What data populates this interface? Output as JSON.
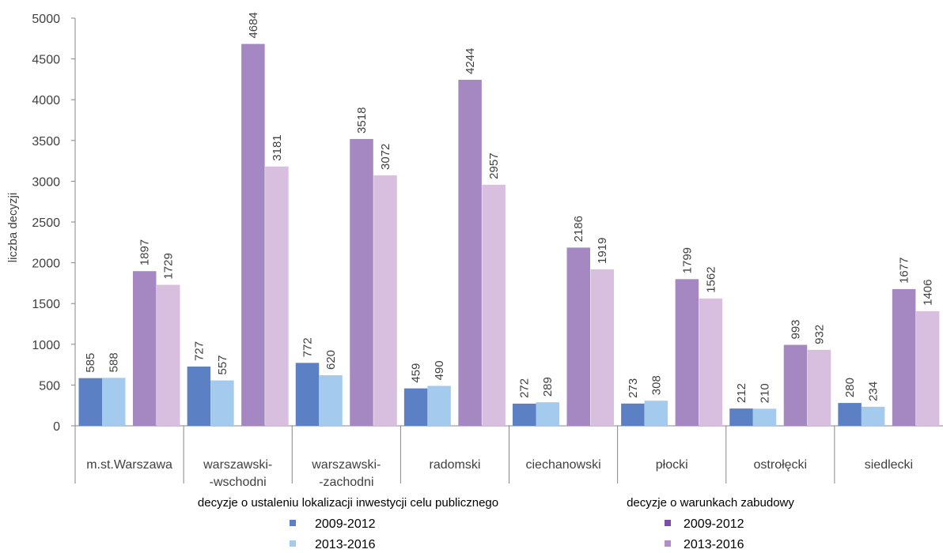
{
  "chart_data": {
    "type": "bar",
    "ylabel": "liczba decyzji",
    "ylim": [
      0,
      5000
    ],
    "yticks": [
      "0",
      "500",
      "1000",
      "1500",
      "2000",
      "2500",
      "3000",
      "3500",
      "4000",
      "4500",
      "5000"
    ],
    "grid": false,
    "categories": [
      [
        "m.st.Warszawa"
      ],
      [
        "warszawski-",
        "-wschodni"
      ],
      [
        "warszawski-",
        "-zachodni"
      ],
      [
        "radomski"
      ],
      [
        "ciechanowski"
      ],
      [
        "płocki"
      ],
      [
        "ostrołęcki"
      ],
      [
        "siedlecki"
      ]
    ],
    "groups": [
      {
        "title": "decyzje o ustaleniu lokalizacji inwestycji celu publicznego",
        "series": [
          {
            "name": "2009-2012",
            "color": "#5B80C4",
            "values": [
              585,
              727,
              772,
              459,
              272,
              273,
              212,
              280
            ],
            "labels": [
              "585",
              "727",
              "772",
              "459",
              "272",
              "273",
              "212",
              "280"
            ]
          },
          {
            "name": "2013-2016",
            "color": "#A4CBEE",
            "values": [
              588,
              557,
              620,
              490,
              289,
              308,
              210,
              234
            ],
            "labels": [
              "588",
              "557",
              "620",
              "490",
              "289",
              "308",
              "210",
              "234"
            ]
          }
        ]
      },
      {
        "title": "decyzje o warunkach zabudowy",
        "series": [
          {
            "name": "2009-2012",
            "color": "#A588C2",
            "legend_color": "#7D4FA8",
            "values": [
              1897,
              4684,
              3518,
              4244,
              2186,
              1799,
              993,
              1677
            ],
            "labels": [
              "1897",
              "4684",
              "3518",
              "4244",
              "2186",
              "1799",
              "993",
              "1677"
            ]
          },
          {
            "name": "2013-2016",
            "color": "#D8BEDF",
            "legend_color": "#B48CC9",
            "values": [
              1729,
              3181,
              3072,
              2957,
              1919,
              1562,
              932,
              1406
            ],
            "labels": [
              "1729",
              "3181",
              "3072",
              "2957",
              "1919",
              "1562",
              "932",
              "1406"
            ]
          }
        ]
      }
    ]
  }
}
